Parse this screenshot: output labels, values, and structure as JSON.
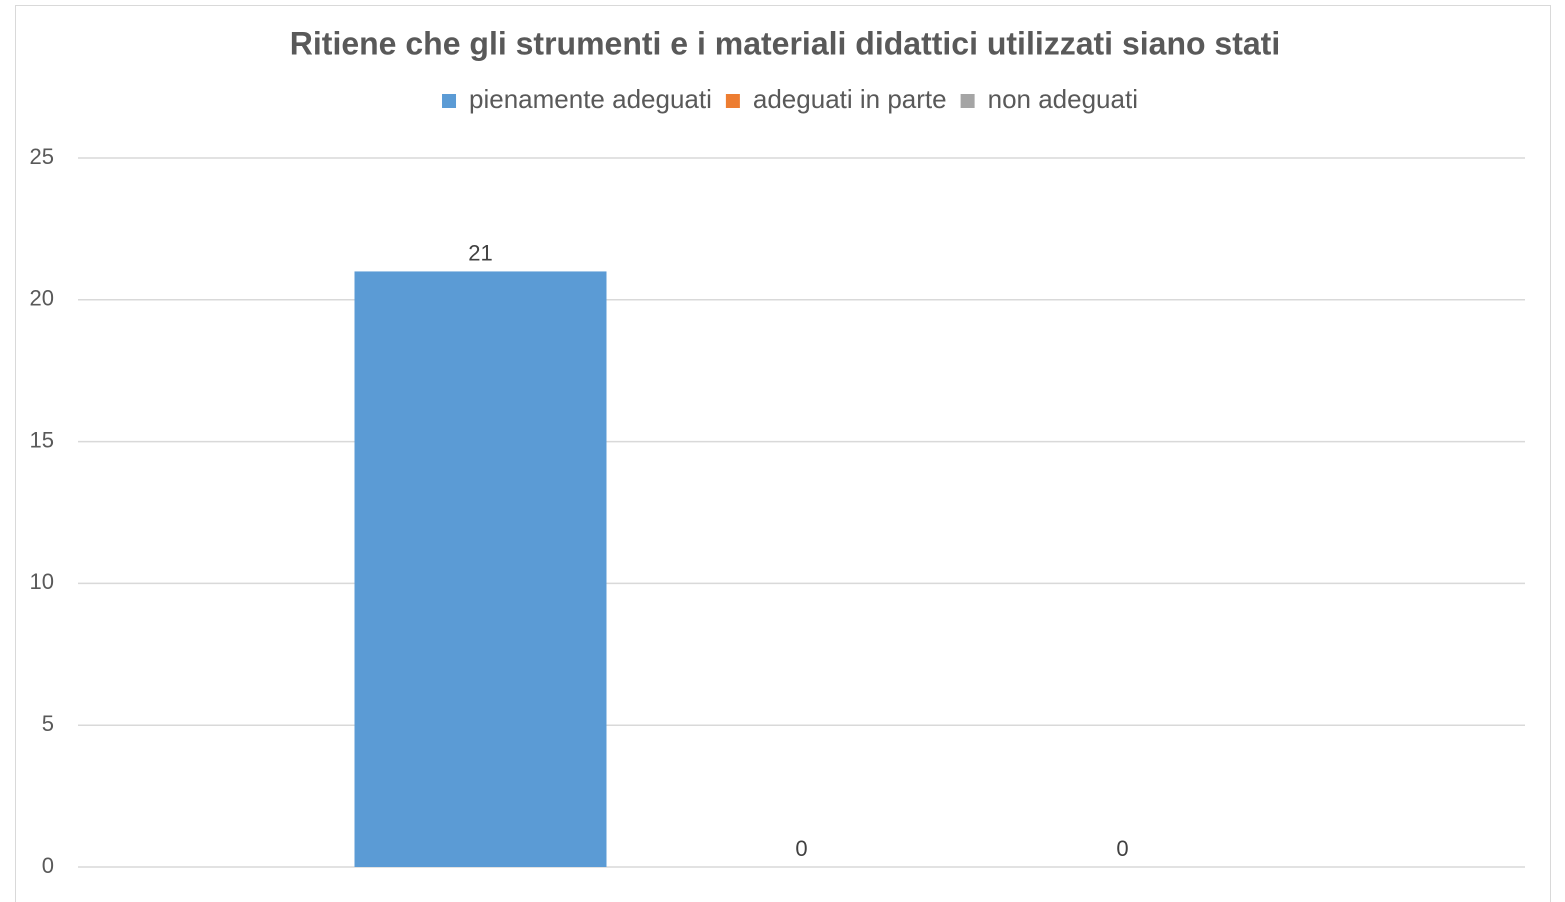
{
  "chart_data": {
    "type": "bar",
    "title": "Ritiene che gli strumenti e i materiali didattici utilizzati siano stati",
    "categories": [
      null
    ],
    "series": [
      {
        "name": "pienamente adeguati",
        "color": "#5b9bd5",
        "values": [
          21
        ]
      },
      {
        "name": "adeguati in parte",
        "color": "#ed7d31",
        "values": [
          0
        ]
      },
      {
        "name": "non adeguati",
        "color": "#a5a5a5",
        "values": [
          0
        ]
      }
    ],
    "ylim": [
      0,
      25
    ],
    "yticks": [
      0,
      5,
      10,
      15,
      20,
      25
    ],
    "grid": true,
    "legend": "top"
  }
}
